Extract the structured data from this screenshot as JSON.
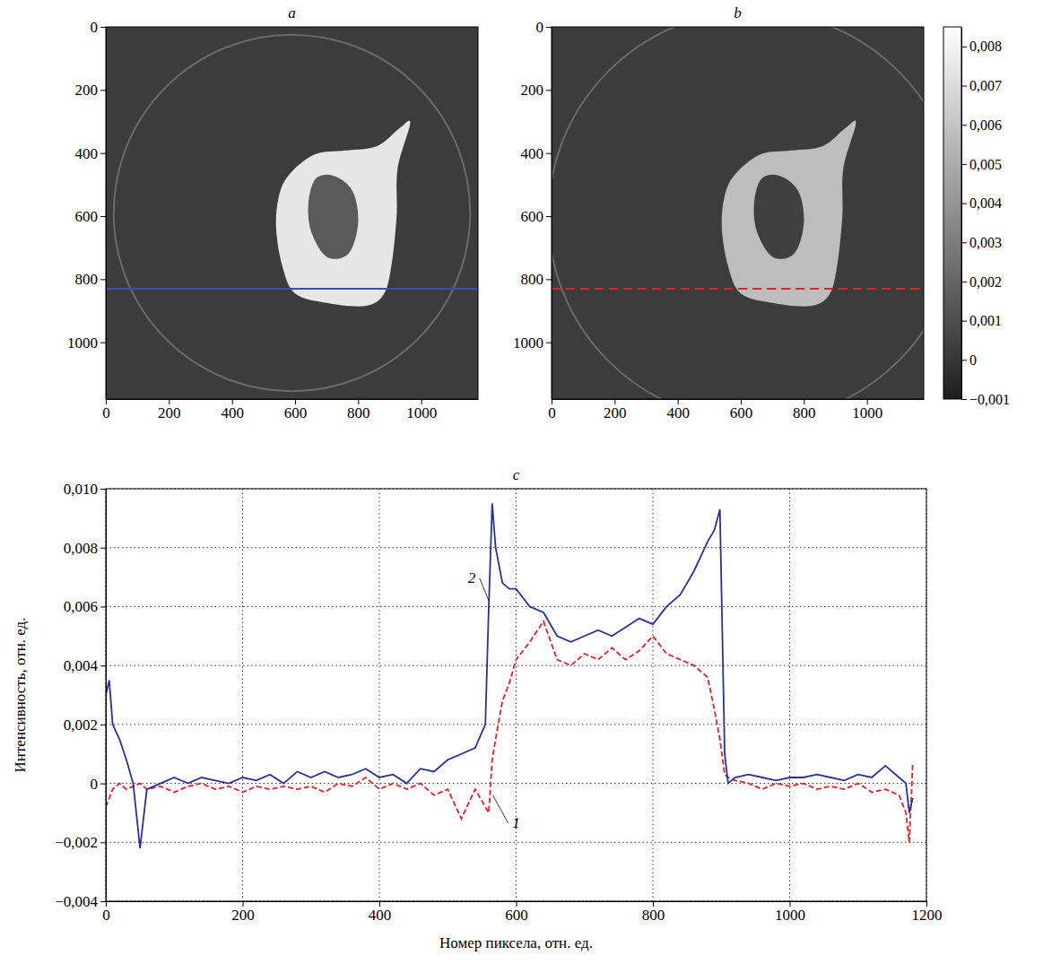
{
  "chart_data": [
    {
      "type": "image",
      "title": "a",
      "xlim": [
        0,
        1180
      ],
      "ylim": [
        0,
        1180
      ],
      "xticks": [
        0,
        200,
        400,
        600,
        800,
        1000
      ],
      "yticks": [
        0,
        200,
        400,
        600,
        800,
        1000
      ],
      "profile_row": 830,
      "color": "#3b4cc0",
      "line_style": "solid"
    },
    {
      "type": "image",
      "title": "b",
      "xlim": [
        0,
        1180
      ],
      "ylim": [
        0,
        1180
      ],
      "xticks": [
        0,
        200,
        400,
        600,
        800,
        1000
      ],
      "yticks": [
        0,
        200,
        400,
        600,
        800,
        1000
      ],
      "profile_row": 830,
      "color": "#e8202a",
      "line_style": "dashed",
      "colorbar": {
        "range": [
          -0.001,
          0.0085
        ],
        "ticks": [
          {
            "value": -0.001,
            "label": "−0,001"
          },
          0,
          {
            "value": 0.001,
            "label": "0,001"
          },
          {
            "value": 0.002,
            "label": "0,002"
          },
          {
            "value": 0.003,
            "label": "0,003"
          },
          {
            "value": 0.004,
            "label": "0,004"
          },
          {
            "value": 0.005,
            "label": "0,005"
          },
          {
            "value": 0.006,
            "label": "0,006"
          },
          {
            "value": 0.007,
            "label": "0,007"
          },
          {
            "value": 0.008,
            "label": "0,008"
          }
        ]
      }
    },
    {
      "type": "line",
      "title": "c",
      "x_label": "Номер пиксела, отн. ед.",
      "y_label": "Интенсивность, отн. ед.",
      "xlim": [
        0,
        1200
      ],
      "ylim": [
        -0.004,
        0.01
      ],
      "xticks": [
        0,
        200,
        400,
        600,
        800,
        1000,
        1200
      ],
      "yticks": [
        {
          "value": -0.004,
          "label": "−0,004"
        },
        {
          "value": -0.002,
          "label": "−0,002"
        },
        0,
        {
          "value": 0.002,
          "label": "0,002"
        },
        {
          "value": 0.004,
          "label": "0,004"
        },
        {
          "value": 0.006,
          "label": "0,006"
        },
        {
          "value": 0.008,
          "label": "0,008"
        },
        {
          "value": 0.01,
          "label": "0,010"
        }
      ],
      "grid": true,
      "x": [
        0,
        5,
        10,
        20,
        30,
        40,
        50,
        60,
        80,
        100,
        120,
        140,
        160,
        180,
        200,
        220,
        240,
        260,
        280,
        300,
        320,
        340,
        360,
        380,
        400,
        420,
        440,
        460,
        480,
        500,
        520,
        540,
        555,
        560,
        565,
        570,
        580,
        590,
        600,
        620,
        640,
        660,
        680,
        700,
        720,
        740,
        760,
        780,
        800,
        820,
        840,
        860,
        880,
        890,
        898,
        905,
        910,
        920,
        940,
        960,
        980,
        1000,
        1020,
        1040,
        1060,
        1080,
        1100,
        1120,
        1140,
        1160,
        1170,
        1175,
        1180
      ],
      "series": [
        {
          "color": "#e8202a",
          "line_style": "dashed",
          "values": [
            -0.0008,
            -0.0005,
            -0.0002,
            0.0,
            -0.0002,
            -0.0001,
            0.0,
            -0.0002,
            -0.0001,
            -0.0003,
            -0.0001,
            0.0,
            -0.0002,
            -0.0001,
            -0.0003,
            -0.0001,
            -0.0002,
            -0.0001,
            -0.0002,
            -0.0001,
            -0.0003,
            0.0,
            -0.0001,
            0.0002,
            -0.0002,
            0.0,
            -0.0002,
            0.0,
            -0.0004,
            -0.0002,
            -0.0012,
            -0.0002,
            -0.0008,
            -0.001,
            0.0008,
            0.0015,
            0.0028,
            0.0034,
            0.0042,
            0.0048,
            0.0055,
            0.0042,
            0.004,
            0.0044,
            0.0042,
            0.0046,
            0.0042,
            0.0045,
            0.005,
            0.0044,
            0.0042,
            0.004,
            0.0036,
            0.0025,
            0.0015,
            0.0003,
            0.0002,
            0.0001,
            0.0,
            -0.0002,
            0.0,
            -0.0001,
            0.0,
            -0.0002,
            -0.0001,
            -0.0002,
            0.0,
            -0.0003,
            -0.0002,
            -0.0004,
            -0.001,
            -0.002,
            0.0007
          ]
        },
        {
          "color": "#2b3190",
          "line_style": "solid",
          "values": [
            0.003,
            0.0035,
            0.002,
            0.0015,
            0.0008,
            0.0,
            -0.0022,
            -0.0002,
            0.0,
            0.0002,
            0.0,
            0.0002,
            0.0001,
            0.0,
            0.0002,
            0.0001,
            0.0003,
            0.0,
            0.0004,
            0.0002,
            0.0004,
            0.0002,
            0.0003,
            0.0005,
            0.0002,
            0.0003,
            0.0,
            0.0005,
            0.0004,
            0.0008,
            0.001,
            0.0012,
            0.002,
            0.006,
            0.0095,
            0.008,
            0.0068,
            0.0066,
            0.0066,
            0.006,
            0.0058,
            0.005,
            0.0048,
            0.005,
            0.0052,
            0.005,
            0.0053,
            0.0056,
            0.0054,
            0.006,
            0.0064,
            0.0072,
            0.0082,
            0.0086,
            0.0093,
            0.001,
            0.0,
            0.0002,
            0.0003,
            0.0002,
            0.0001,
            0.0002,
            0.0002,
            0.0003,
            0.0002,
            0.0001,
            0.0003,
            0.0002,
            0.0006,
            0.0002,
            0.0,
            -0.001,
            -0.0005
          ]
        }
      ],
      "annotations": [
        {
          "text": "2",
          "x": 535,
          "y": 0.0068,
          "target_x": 560,
          "target_y": 0.0062
        },
        {
          "text": "1",
          "x": 600,
          "y": -0.0015,
          "target_x": 566,
          "target_y": -0.0004
        }
      ]
    }
  ]
}
